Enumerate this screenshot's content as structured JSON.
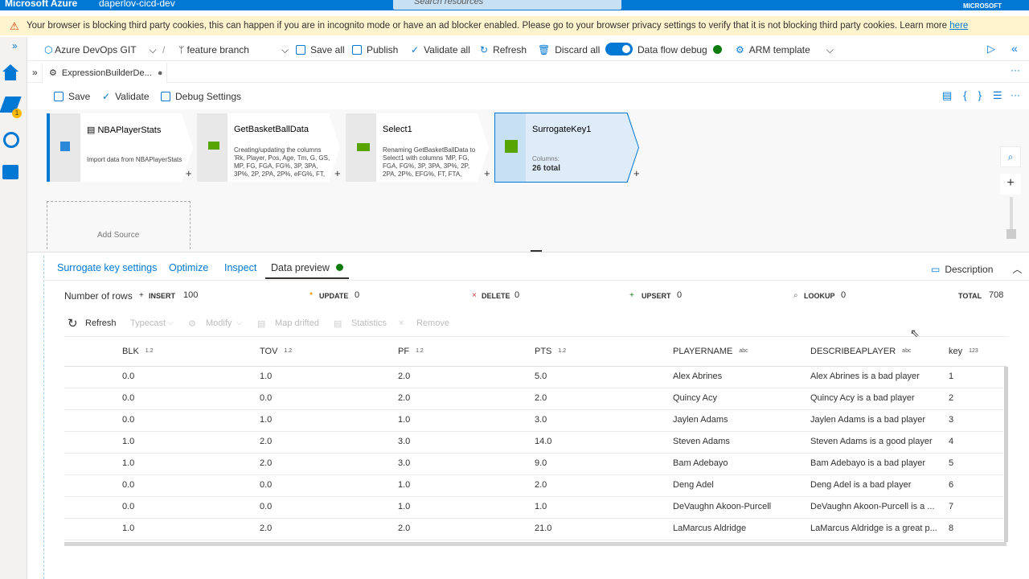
{
  "header": {
    "brand": "Microsoft Azure",
    "resource": "daperlov-cicd-dev",
    "search": "Search resources",
    "tenant": "MICROSOFT"
  },
  "warning": {
    "text": "Your browser is blocking third party cookies, this can happen if you are in incognito mode or have an ad blocker enabled. Please go to your browser privacy settings to verify that it is not blocking third party cookies. Learn more",
    "link": "here"
  },
  "toolbar": {
    "repo": "Azure DevOps GIT",
    "branch": "feature branch",
    "save_all": "Save all",
    "publish": "Publish",
    "validate_all": "Validate all",
    "refresh": "Refresh",
    "discard_all": "Discard all",
    "debug": "Data flow debug",
    "arm": "ARM template"
  },
  "tab": {
    "title": "ExpressionBuilderDe..."
  },
  "subtoolbar": {
    "save": "Save",
    "validate": "Validate",
    "debug_settings": "Debug Settings"
  },
  "nodes": [
    {
      "title": "NBAPlayerStats",
      "desc": "Import data from NBAPlayerStats"
    },
    {
      "title": "GetBasketBallData",
      "desc": "Creating/updating the columns 'Rk, Player, Pos, Age, Tm, G, GS, MP, FG, FGA, FG%, 3P, 3PA, 3P%, 2P, 2PA, 2P%, eFG%, FT,"
    },
    {
      "title": "Select1",
      "desc": "Renaming GetBasketBallData to Select1 with columns 'MP, FG, FGA, FG%, 3P, 3PA, 3P%, 2P, 2PA, 2P%, EFG%, FT, FTA,"
    },
    {
      "title": "SurrogateKey1",
      "desc": "Columns:",
      "count": "26 total"
    }
  ],
  "add_source": "Add Source",
  "panel_tabs": [
    "Surrogate key settings",
    "Optimize",
    "Inspect",
    "Data preview"
  ],
  "description": "Description",
  "stats": {
    "label": "Number of rows",
    "items": [
      {
        "name": "INSERT",
        "value": 100
      },
      {
        "name": "UPDATE",
        "value": 0
      },
      {
        "name": "DELETE",
        "value": 0
      },
      {
        "name": "UPSERT",
        "value": 0
      },
      {
        "name": "LOOKUP",
        "value": 0
      },
      {
        "name": "TOTAL",
        "value": 708
      }
    ]
  },
  "actions": [
    "Refresh",
    "Typecast",
    "Modify",
    "Map drifted",
    "Statistics",
    "Remove"
  ],
  "table": {
    "columns": [
      {
        "name": "BLK",
        "type": "1.2"
      },
      {
        "name": "TOV",
        "type": "1.2"
      },
      {
        "name": "PF",
        "type": "1.2"
      },
      {
        "name": "PTS",
        "type": "1.2"
      },
      {
        "name": "PLAYERNAME",
        "type": "abc"
      },
      {
        "name": "DESCRIBEAPLAYER",
        "type": "abc"
      },
      {
        "name": "key",
        "type": "123"
      }
    ],
    "rows": [
      [
        "0.0",
        "1.0",
        "2.0",
        "5.0",
        "Alex Abrines",
        "Alex Abrines is a bad player",
        "1"
      ],
      [
        "0.0",
        "0.0",
        "2.0",
        "2.0",
        "Quincy Acy",
        "Quincy Acy is a bad player",
        "2"
      ],
      [
        "0.0",
        "1.0",
        "1.0",
        "3.0",
        "Jaylen Adams",
        "Jaylen Adams is a bad player",
        "3"
      ],
      [
        "1.0",
        "2.0",
        "3.0",
        "14.0",
        "Steven Adams",
        "Steven Adams is a good player",
        "4"
      ],
      [
        "1.0",
        "2.0",
        "3.0",
        "9.0",
        "Bam Adebayo",
        "Bam Adebayo is a bad player",
        "5"
      ],
      [
        "0.0",
        "0.0",
        "1.0",
        "2.0",
        "Deng Adel",
        "Deng Adel is a bad player",
        "6"
      ],
      [
        "0.0",
        "0.0",
        "1.0",
        "1.0",
        "DeVaughn Akoon-Purcell",
        "DeVaughn Akoon-Purcell is a ...",
        "7"
      ],
      [
        "1.0",
        "2.0",
        "2.0",
        "21.0",
        "LaMarcus Aldridge",
        "LaMarcus Aldridge is a great p...",
        "8"
      ]
    ]
  }
}
